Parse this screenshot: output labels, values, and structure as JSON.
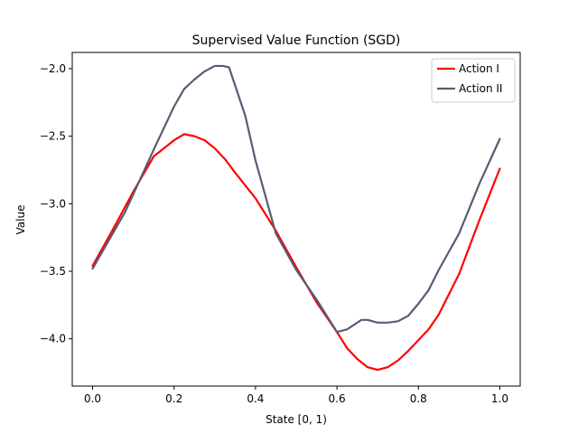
{
  "chart_data": {
    "type": "line",
    "title": "Supervised Value Function (SGD)",
    "xlabel": "State [0, 1)",
    "ylabel": "Value",
    "xlim": [
      -0.05,
      1.05
    ],
    "ylim": [
      -4.35,
      -1.88
    ],
    "xticks": [
      0.0,
      0.2,
      0.4,
      0.6,
      0.8,
      1.0
    ],
    "xtick_labels": [
      "0.0",
      "0.2",
      "0.4",
      "0.6",
      "0.8",
      "1.0"
    ],
    "yticks": [
      -4.0,
      -3.5,
      -3.0,
      -2.5,
      -2.0
    ],
    "ytick_labels": [
      "−4.0",
      "−3.5",
      "−3.0",
      "−2.5",
      "−2.0"
    ],
    "grid": false,
    "legend": "top-right",
    "series": [
      {
        "name": "Action I",
        "color": "#ff0000",
        "x": [
          0.0,
          0.05,
          0.1,
          0.15,
          0.2,
          0.225,
          0.25,
          0.275,
          0.3,
          0.325,
          0.35,
          0.4,
          0.45,
          0.5,
          0.55,
          0.6,
          0.625,
          0.65,
          0.675,
          0.7,
          0.725,
          0.75,
          0.775,
          0.8,
          0.825,
          0.85,
          0.9,
          0.95,
          1.0
        ],
        "y": [
          -3.46,
          -3.19,
          -2.91,
          -2.65,
          -2.53,
          -2.485,
          -2.5,
          -2.53,
          -2.59,
          -2.67,
          -2.77,
          -2.96,
          -3.2,
          -3.47,
          -3.73,
          -3.95,
          -4.07,
          -4.15,
          -4.21,
          -4.23,
          -4.21,
          -4.16,
          -4.09,
          -4.01,
          -3.93,
          -3.82,
          -3.52,
          -3.12,
          -2.74
        ]
      },
      {
        "name": "Action II",
        "color": "#5a5a73",
        "x": [
          0.0,
          0.08,
          0.15,
          0.2,
          0.225,
          0.25,
          0.275,
          0.3,
          0.32,
          0.335,
          0.375,
          0.4,
          0.45,
          0.5,
          0.55,
          0.6,
          0.625,
          0.65,
          0.66,
          0.675,
          0.7,
          0.725,
          0.75,
          0.775,
          0.8,
          0.825,
          0.85,
          0.9,
          0.95,
          1.0
        ],
        "y": [
          -3.48,
          -3.06,
          -2.6,
          -2.28,
          -2.15,
          -2.08,
          -2.02,
          -1.98,
          -1.98,
          -1.99,
          -2.35,
          -2.68,
          -3.22,
          -3.49,
          -3.71,
          -3.95,
          -3.93,
          -3.88,
          -3.86,
          -3.86,
          -3.88,
          -3.88,
          -3.87,
          -3.83,
          -3.74,
          -3.64,
          -3.49,
          -3.22,
          -2.85,
          -2.52
        ]
      }
    ]
  }
}
